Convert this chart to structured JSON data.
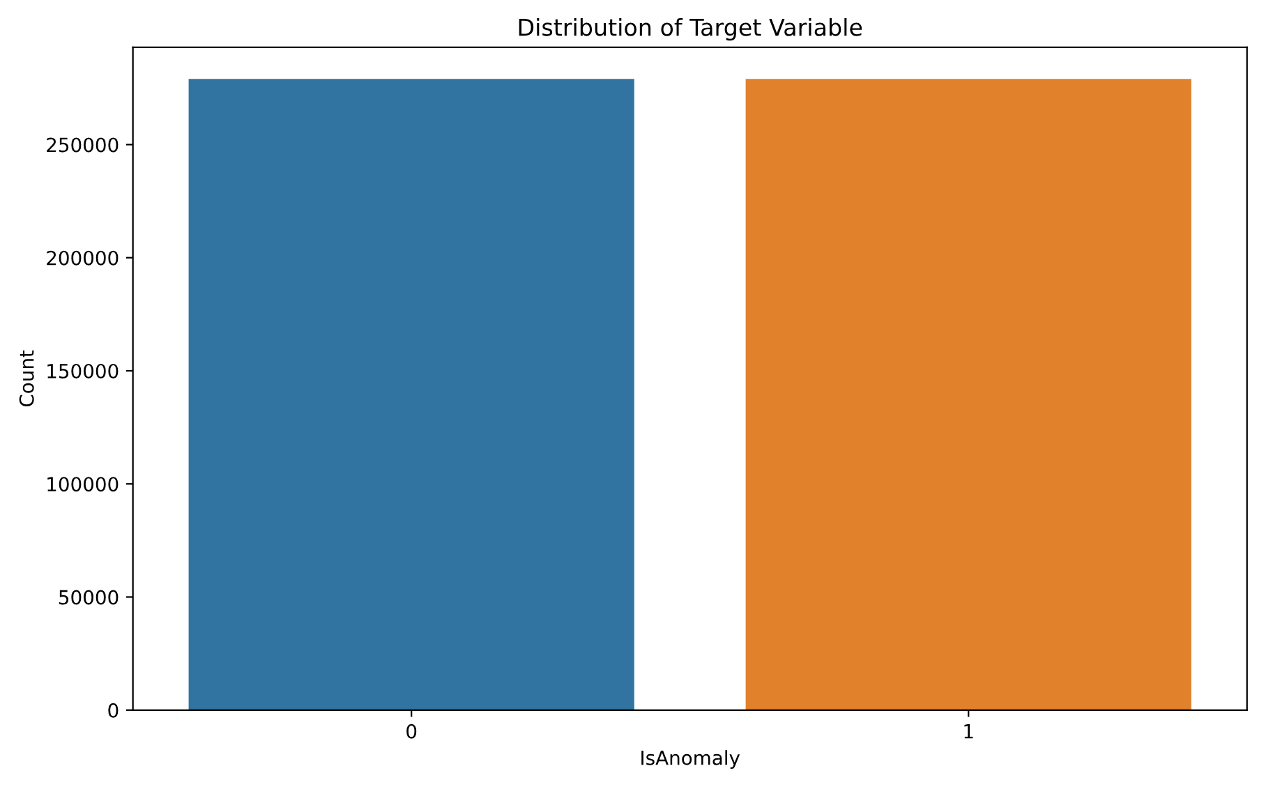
{
  "chart_data": {
    "type": "bar",
    "title": "Distribution of Target Variable",
    "xlabel": "IsAnomaly",
    "ylabel": "Count",
    "categories": [
      "0",
      "1"
    ],
    "values": [
      279000,
      279000
    ],
    "colors": [
      "#3274a1",
      "#e1812c"
    ],
    "ylim": [
      0,
      293000
    ],
    "yticks": [
      0,
      50000,
      100000,
      150000,
      200000,
      250000
    ],
    "grid": false,
    "legend": false
  }
}
